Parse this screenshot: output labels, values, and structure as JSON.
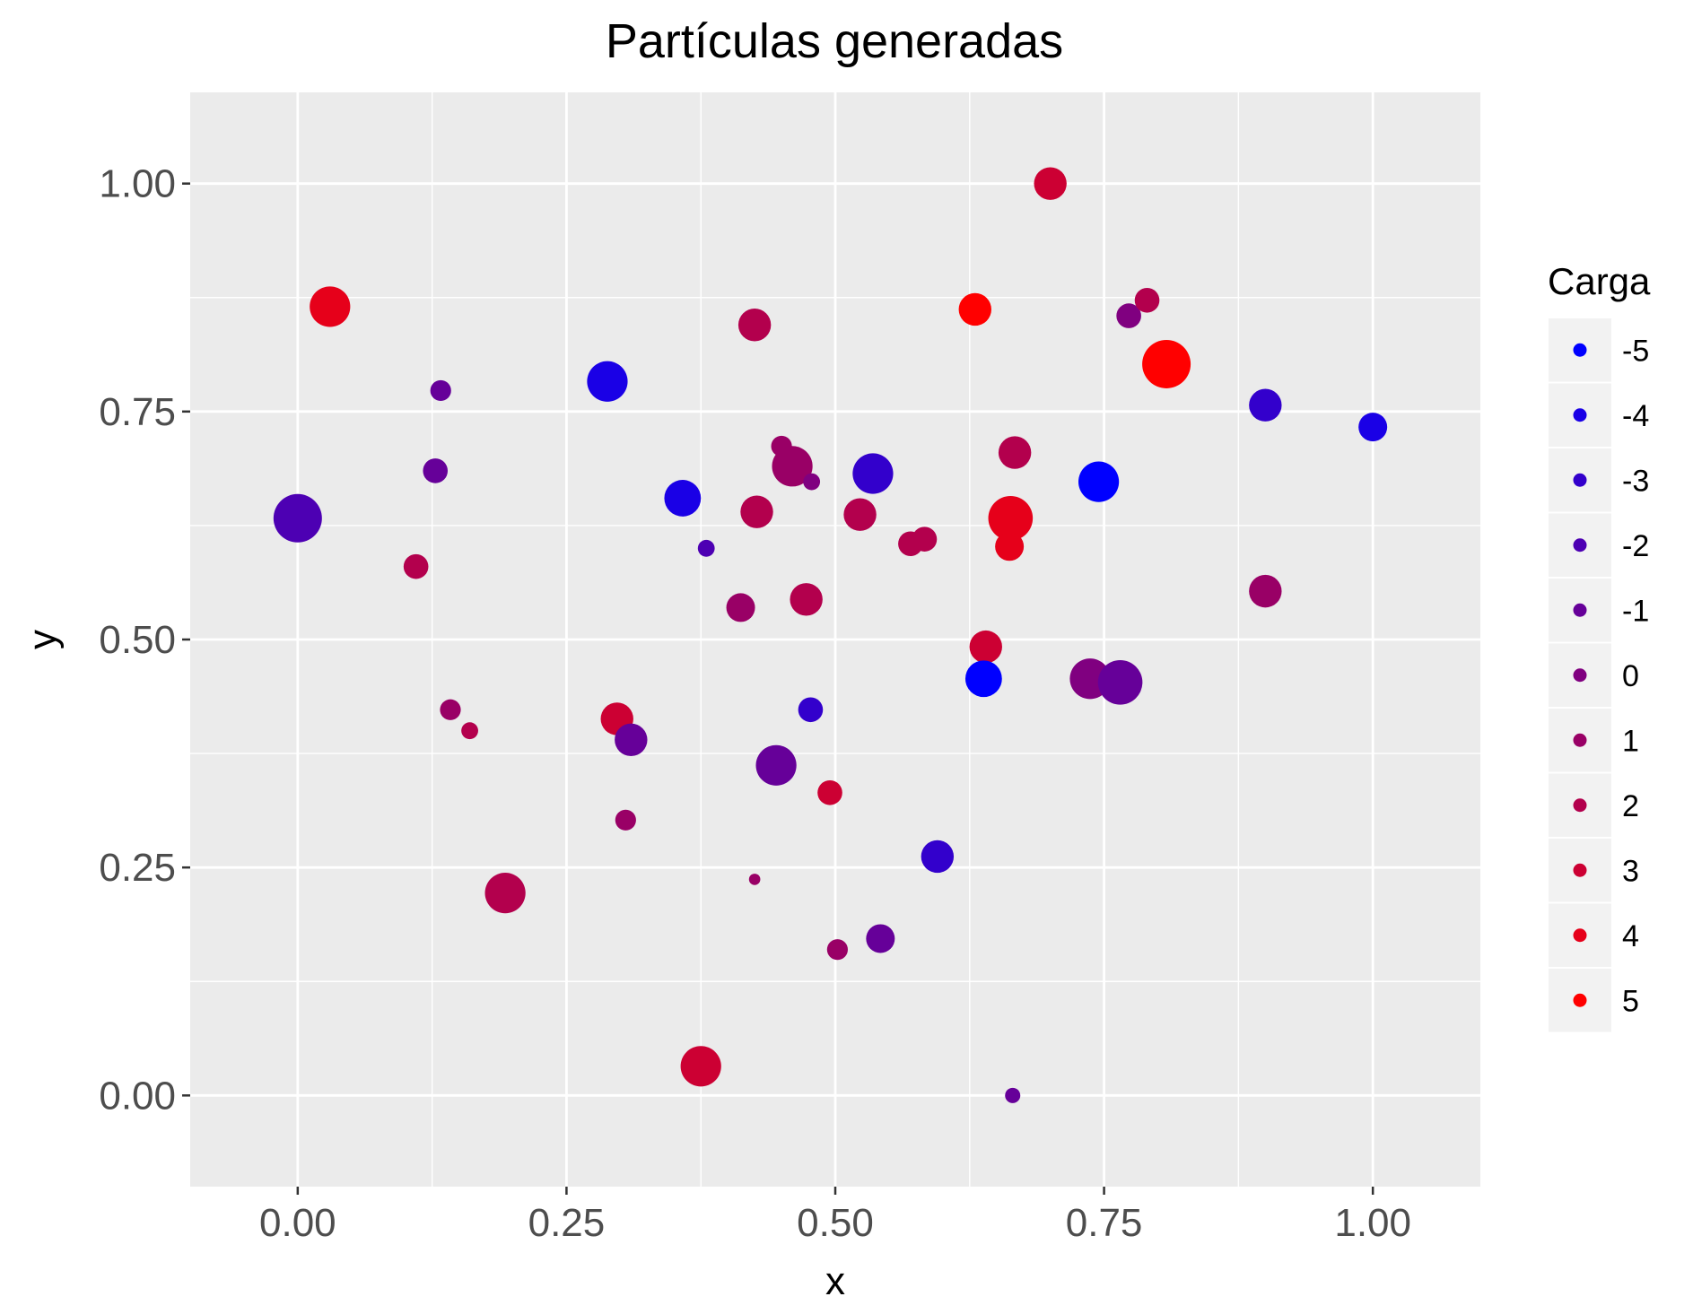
{
  "chart_data": {
    "type": "scatter",
    "title": "Partículas generadas",
    "xlabel": "x",
    "ylabel": "y",
    "xlim": [
      -0.1,
      1.1
    ],
    "ylim": [
      -0.1,
      1.1
    ],
    "x_ticks": [
      "0.00",
      "0.25",
      "0.50",
      "0.75",
      "1.00"
    ],
    "y_ticks": [
      "0.00",
      "0.25",
      "0.50",
      "0.75",
      "1.00"
    ],
    "x_tick_values": [
      0,
      0.25,
      0.5,
      0.75,
      1.0
    ],
    "y_tick_values": [
      0,
      0.25,
      0.5,
      0.75,
      1.0
    ],
    "grid": true,
    "legend": {
      "title": "Carga",
      "position": "right",
      "labels": [
        "-5",
        "-4",
        "-3",
        "-2",
        "-1",
        "0",
        "1",
        "2",
        "3",
        "4",
        "5"
      ]
    },
    "color_scale": {
      "low": "#0000FF",
      "high": "#FF0000",
      "min": -5,
      "max": 5
    },
    "points": [
      {
        "x": 0.7,
        "y": 1.0,
        "charge": 3,
        "size": 3
      },
      {
        "x": 0.03,
        "y": 0.865,
        "charge": 4,
        "size": 4
      },
      {
        "x": 0.425,
        "y": 0.845,
        "charge": 2,
        "size": 3
      },
      {
        "x": 0.63,
        "y": 0.862,
        "charge": 5,
        "size": 3
      },
      {
        "x": 0.773,
        "y": 0.855,
        "charge": 0,
        "size": 2
      },
      {
        "x": 0.79,
        "y": 0.872,
        "charge": 2,
        "size": 2
      },
      {
        "x": 0.808,
        "y": 0.802,
        "charge": 5,
        "size": 5
      },
      {
        "x": 0.288,
        "y": 0.783,
        "charge": -4,
        "size": 4
      },
      {
        "x": 0.133,
        "y": 0.773,
        "charge": -1,
        "size": 1.5
      },
      {
        "x": 0.9,
        "y": 0.757,
        "charge": -3,
        "size": 3
      },
      {
        "x": 1.0,
        "y": 0.733,
        "charge": -4,
        "size": 2.5
      },
      {
        "x": 0.45,
        "y": 0.712,
        "charge": 1,
        "size": 1.5
      },
      {
        "x": 0.46,
        "y": 0.69,
        "charge": 1,
        "size": 4
      },
      {
        "x": 0.667,
        "y": 0.705,
        "charge": 2,
        "size": 3
      },
      {
        "x": 0.128,
        "y": 0.685,
        "charge": -1,
        "size": 2
      },
      {
        "x": 0.535,
        "y": 0.682,
        "charge": -3,
        "size": 4
      },
      {
        "x": 0.478,
        "y": 0.673,
        "charge": 0,
        "size": 1
      },
      {
        "x": 0.745,
        "y": 0.673,
        "charge": -5,
        "size": 4
      },
      {
        "x": 0.358,
        "y": 0.655,
        "charge": -4,
        "size": 3.5
      },
      {
        "x": 0.0,
        "y": 0.633,
        "charge": -2,
        "size": 5
      },
      {
        "x": 0.427,
        "y": 0.64,
        "charge": 2,
        "size": 3
      },
      {
        "x": 0.523,
        "y": 0.637,
        "charge": 2,
        "size": 3
      },
      {
        "x": 0.663,
        "y": 0.633,
        "charge": 4,
        "size": 4.5
      },
      {
        "x": 0.57,
        "y": 0.605,
        "charge": 2,
        "size": 2
      },
      {
        "x": 0.583,
        "y": 0.61,
        "charge": 2,
        "size": 2
      },
      {
        "x": 0.38,
        "y": 0.6,
        "charge": -2,
        "size": 1
      },
      {
        "x": 0.662,
        "y": 0.602,
        "charge": 4,
        "size": 2.5
      },
      {
        "x": 0.11,
        "y": 0.58,
        "charge": 2,
        "size": 2
      },
      {
        "x": 0.9,
        "y": 0.553,
        "charge": 1,
        "size": 3
      },
      {
        "x": 0.473,
        "y": 0.544,
        "charge": 2,
        "size": 3
      },
      {
        "x": 0.412,
        "y": 0.535,
        "charge": 1,
        "size": 2.5
      },
      {
        "x": 0.64,
        "y": 0.492,
        "charge": 3,
        "size": 3
      },
      {
        "x": 0.638,
        "y": 0.457,
        "charge": -5,
        "size": 3.5
      },
      {
        "x": 0.737,
        "y": 0.457,
        "charge": 0,
        "size": 4
      },
      {
        "x": 0.765,
        "y": 0.453,
        "charge": -1,
        "size": 4.5
      },
      {
        "x": 0.477,
        "y": 0.423,
        "charge": -3,
        "size": 2
      },
      {
        "x": 0.142,
        "y": 0.423,
        "charge": 1,
        "size": 1.5
      },
      {
        "x": 0.297,
        "y": 0.413,
        "charge": 3,
        "size": 3
      },
      {
        "x": 0.16,
        "y": 0.4,
        "charge": 2,
        "size": 1
      },
      {
        "x": 0.31,
        "y": 0.39,
        "charge": -1,
        "size": 3
      },
      {
        "x": 0.445,
        "y": 0.362,
        "charge": -1,
        "size": 4
      },
      {
        "x": 0.495,
        "y": 0.332,
        "charge": 3,
        "size": 2
      },
      {
        "x": 0.305,
        "y": 0.302,
        "charge": 1,
        "size": 1.5
      },
      {
        "x": 0.595,
        "y": 0.262,
        "charge": -3,
        "size": 3
      },
      {
        "x": 0.425,
        "y": 0.237,
        "charge": 1,
        "size": 0.3
      },
      {
        "x": 0.193,
        "y": 0.222,
        "charge": 2,
        "size": 4
      },
      {
        "x": 0.542,
        "y": 0.172,
        "charge": -1,
        "size": 2.5
      },
      {
        "x": 0.502,
        "y": 0.16,
        "charge": 1,
        "size": 1.5
      },
      {
        "x": 0.375,
        "y": 0.032,
        "charge": 3,
        "size": 4
      },
      {
        "x": 0.665,
        "y": 0.0,
        "charge": -1,
        "size": 0.8
      }
    ]
  }
}
